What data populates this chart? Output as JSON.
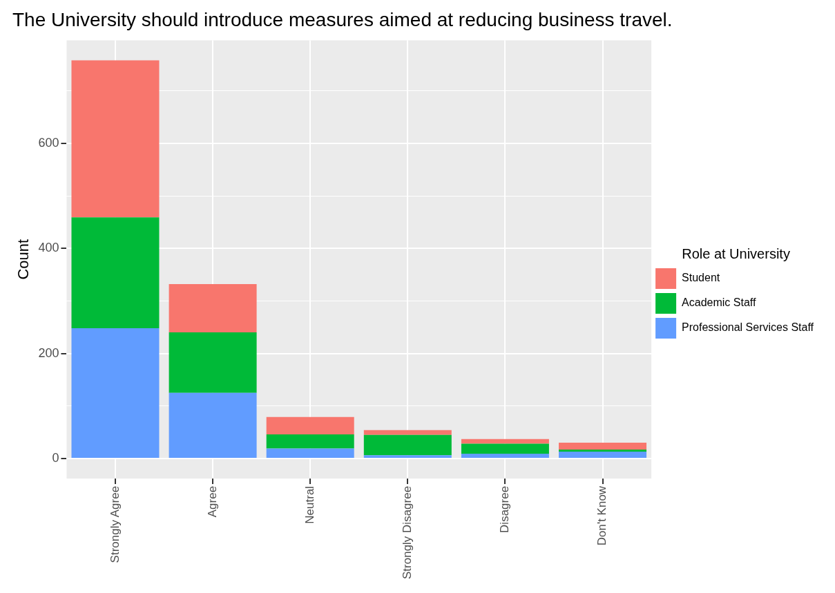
{
  "chart_data": {
    "type": "bar",
    "title": "The University should introduce measures aimed at reducing business travel.",
    "ylabel": "Count",
    "legend_title": "Role at University",
    "stacked": true,
    "legend": "right",
    "grid": true,
    "categories": [
      "Strongly Agree",
      "Agree",
      "Neutral",
      "Strongly Disagree",
      "Disagree",
      "Don't Know"
    ],
    "series": [
      {
        "name": "Professional Services Staff",
        "color": "#619cff",
        "values": [
          248,
          125,
          19,
          6,
          9,
          13
        ]
      },
      {
        "name": "Academic Staff",
        "color": "#00ba38",
        "values": [
          211,
          115,
          27,
          39,
          19,
          4
        ]
      },
      {
        "name": "Student",
        "color": "#f8766d",
        "values": [
          299,
          92,
          33,
          9,
          9,
          13
        ]
      }
    ],
    "ylim": [
      -38,
      796
    ],
    "yticks": [
      0,
      {
        "value": 100,
        "label": null
      },
      200,
      {
        "value": 300,
        "label": null
      },
      400,
      {
        "value": 500,
        "label": null
      },
      600,
      {
        "value": 700,
        "label": null
      }
    ]
  }
}
